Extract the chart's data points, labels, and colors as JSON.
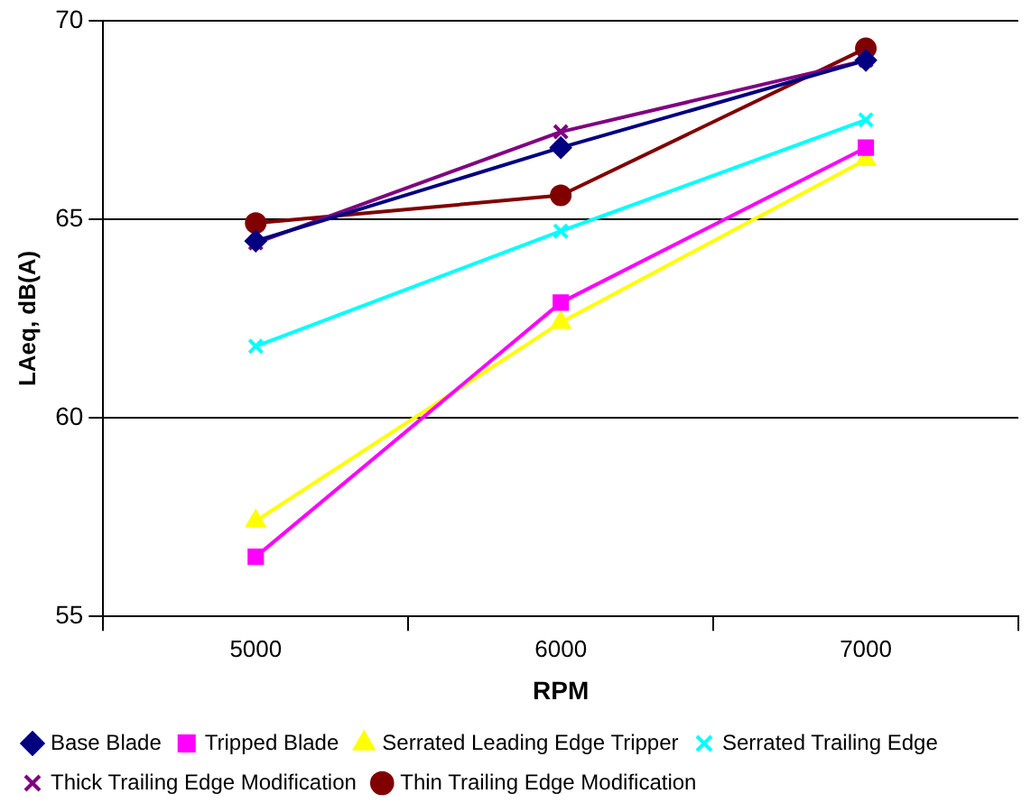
{
  "chart_data": {
    "type": "line",
    "xlabel": "RPM",
    "ylabel": "LAeq, dB(A)",
    "categories": [
      "5000",
      "6000",
      "7000"
    ],
    "ylim": [
      55,
      70
    ],
    "yticks": [
      55,
      60,
      65,
      70
    ],
    "grid": "y",
    "legend": "bottom",
    "series": [
      {
        "name": "Base Blade",
        "color": "#000080",
        "marker": "diamond",
        "values": [
          64.45,
          66.8,
          69.0
        ]
      },
      {
        "name": "Tripped Blade",
        "color": "#ff00ff",
        "marker": "square",
        "values": [
          56.5,
          62.9,
          66.8
        ]
      },
      {
        "name": "Serrated Leading Edge Tripper",
        "color": "#ffff00",
        "marker": "triangle",
        "values": [
          57.4,
          62.4,
          66.5
        ]
      },
      {
        "name": "Serrated Trailing Edge",
        "color": "#00ffff",
        "marker": "cross",
        "values": [
          61.8,
          64.7,
          67.5
        ]
      },
      {
        "name": "Thick Trailing Edge Modification",
        "color": "#800080",
        "marker": "cross",
        "values": [
          64.4,
          67.2,
          69.0
        ]
      },
      {
        "name": "Thin Trailing Edge Modification",
        "color": "#800000",
        "marker": "circle",
        "values": [
          64.9,
          65.6,
          69.3
        ]
      }
    ]
  }
}
